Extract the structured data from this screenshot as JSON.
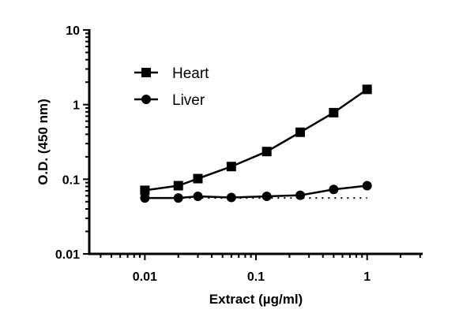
{
  "chart_data": {
    "type": "line",
    "title": "",
    "xlabel": "Extract (µg/ml)",
    "ylabel": "O.D. (450 nm)",
    "xscale": "log",
    "yscale": "log",
    "xlim": [
      0.00316,
      3.16
    ],
    "ylim": [
      0.01,
      10
    ],
    "xticks": [
      {
        "v": 0.01,
        "label": "0.01"
      },
      {
        "v": 0.1,
        "label": "0.1"
      },
      {
        "v": 1,
        "label": "1"
      }
    ],
    "yticks": [
      {
        "v": 0.01,
        "label": "0.01"
      },
      {
        "v": 0.1,
        "label": "0.1"
      },
      {
        "v": 1,
        "label": "1"
      },
      {
        "v": 10,
        "label": "10"
      }
    ],
    "grid": false,
    "legend": "top-left",
    "x": [
      0.01,
      0.02,
      0.03,
      0.06,
      0.125,
      0.25,
      0.5,
      1
    ],
    "series": [
      {
        "name": "Heart",
        "marker": "square",
        "values": [
          0.071,
          0.082,
          0.102,
          0.148,
          0.235,
          0.426,
          0.78,
          1.6
        ]
      },
      {
        "name": "Liver",
        "marker": "circle",
        "values": [
          0.056,
          0.056,
          0.059,
          0.057,
          0.059,
          0.061,
          0.073,
          0.082
        ]
      }
    ],
    "reference_line": {
      "style": "dotted",
      "y": 0.056,
      "x_range": [
        0.01,
        1
      ]
    }
  }
}
